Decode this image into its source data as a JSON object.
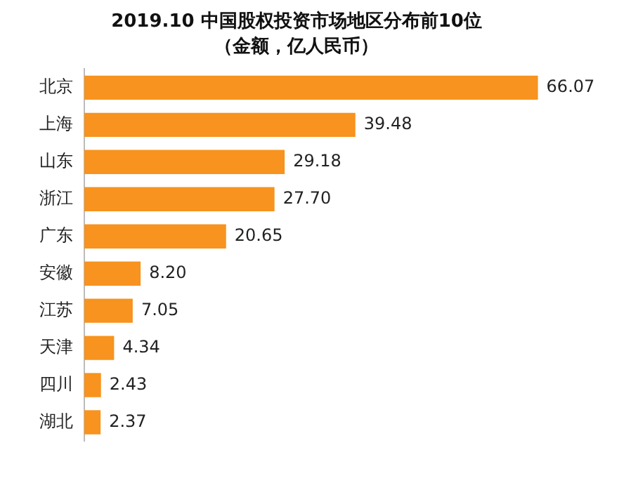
{
  "chart_data": {
    "type": "bar",
    "title": "2019.10 中国股权投资市场地区分布前10位",
    "subtitle": "（金额，亿人民币）",
    "orientation": "horizontal",
    "categories": [
      "北京",
      "上海",
      "山东",
      "浙江",
      "广东",
      "安徽",
      "江苏",
      "天津",
      "四川",
      "湖北"
    ],
    "values": [
      66.07,
      39.48,
      29.18,
      27.7,
      20.65,
      8.2,
      7.05,
      4.34,
      2.43,
      2.37
    ],
    "value_labels": [
      "66.07",
      "39.48",
      "29.18",
      "27.70",
      "20.65",
      "8.20",
      "7.05",
      "4.34",
      "2.43",
      "2.37"
    ],
    "color": "#f7931e"
  }
}
